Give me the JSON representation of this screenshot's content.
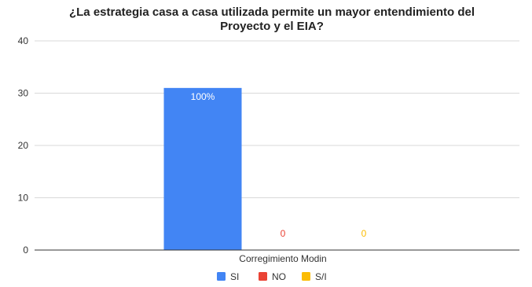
{
  "chart_data": {
    "type": "bar",
    "title_lines": [
      "¿La estrategia casa a casa utilizada permite un mayor entendimiento del",
      "Proyecto y el EIA?"
    ],
    "categories": [
      "Corregimiento Modin"
    ],
    "series": [
      {
        "name": "SI",
        "values": [
          31
        ],
        "data_label": "100%",
        "color": "#4285f4",
        "label_color": "#ffffff"
      },
      {
        "name": "NO",
        "values": [
          0
        ],
        "data_label": "0",
        "color": "#ea4335",
        "label_color": "#ea4335"
      },
      {
        "name": "S/I",
        "values": [
          0
        ],
        "data_label": "0",
        "color": "#fbbc04",
        "label_color": "#fbbc04"
      }
    ],
    "ylim": [
      0,
      40
    ],
    "yticks": [
      "0",
      "10",
      "20",
      "30",
      "40"
    ],
    "grid": true,
    "legend_position": "bottom"
  }
}
